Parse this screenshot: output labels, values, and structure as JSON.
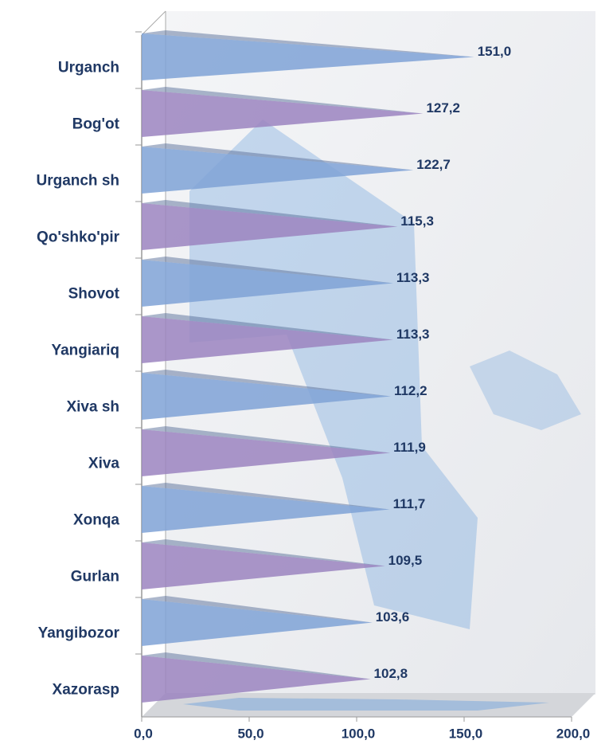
{
  "chart_data": {
    "type": "cone-bar",
    "categories": [
      "Urganch",
      "Bog'ot",
      "Urganch sh",
      "Qo'shko'pir",
      "Shovot",
      "Yangiariq",
      "Xiva sh",
      "Xiva",
      "Xonqa",
      "Gurlan",
      "Yangibozor",
      "Xazorasp"
    ],
    "values": [
      151.0,
      127.2,
      122.7,
      115.3,
      113.3,
      113.3,
      112.2,
      111.9,
      111.7,
      109.5,
      103.6,
      102.8
    ],
    "value_labels": [
      "151,0",
      "127,2",
      "122,7",
      "115,3",
      "113,3",
      "113,3",
      "112,2",
      "111,9",
      "111,7",
      "109,5",
      "103,6",
      "102,8"
    ],
    "colors": [
      "#7fa2d6",
      "#9b84c0",
      "#7fa2d6",
      "#9b84c0",
      "#7fa2d6",
      "#9b84c0",
      "#7fa2d6",
      "#9b84c0",
      "#7fa2d6",
      "#9b84c0",
      "#7fa2d6",
      "#9b84c0"
    ],
    "xlim": [
      0,
      200
    ],
    "xticks": [
      {
        "value": 0,
        "label": "0,0"
      },
      {
        "value": 50,
        "label": "50,0"
      },
      {
        "value": 100,
        "label": "100,0"
      },
      {
        "value": 150,
        "label": "150,0"
      },
      {
        "value": 200,
        "label": "200,0"
      }
    ]
  }
}
